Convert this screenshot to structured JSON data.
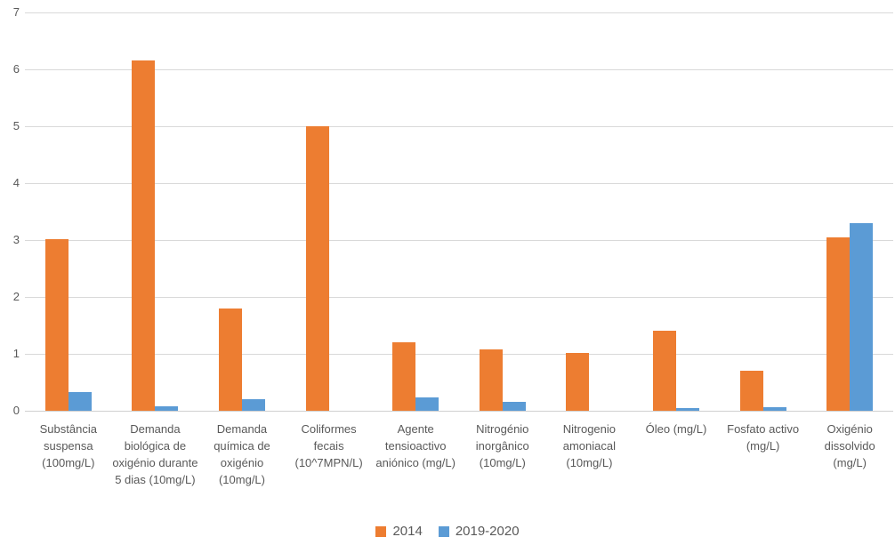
{
  "chart_data": {
    "type": "bar",
    "title": "",
    "xlabel": "",
    "ylabel": "",
    "categories": [
      "Substância suspensa (100mg/L)",
      "Demanda biológica de oxigénio durante 5 dias (10mg/L)",
      "Demanda química de oxigénio (10mg/L)",
      "Coliformes fecais (10^7MPN/L)",
      "Agente tensioactivo aniónico (mg/L)",
      "Nitrogénio inorgânico (10mg/L)",
      "Nitrogenio amoniacal (10mg/L)",
      "Óleo (mg/L)",
      "Fosfato activo (mg/L)",
      "Oxigénio dissolvido (mg/L)"
    ],
    "series": [
      {
        "name": "2014",
        "color": "#ED7D31",
        "values": [
          3.02,
          6.15,
          1.8,
          5.0,
          1.2,
          1.08,
          1.02,
          1.4,
          0.7,
          3.05
        ]
      },
      {
        "name": "2019-2020",
        "color": "#5B9BD5",
        "values": [
          0.33,
          0.08,
          0.2,
          0,
          0.24,
          0.16,
          0,
          0.05,
          0.06,
          3.3
        ]
      }
    ],
    "ylim": [
      0,
      7
    ],
    "yticks": [
      0,
      1,
      2,
      3,
      4,
      5,
      6,
      7
    ],
    "grid": true,
    "legend_position": "bottom",
    "colors": {
      "axis_text": "#595959",
      "gridline": "#D9D9D9",
      "background": "#FFFFFF"
    }
  }
}
